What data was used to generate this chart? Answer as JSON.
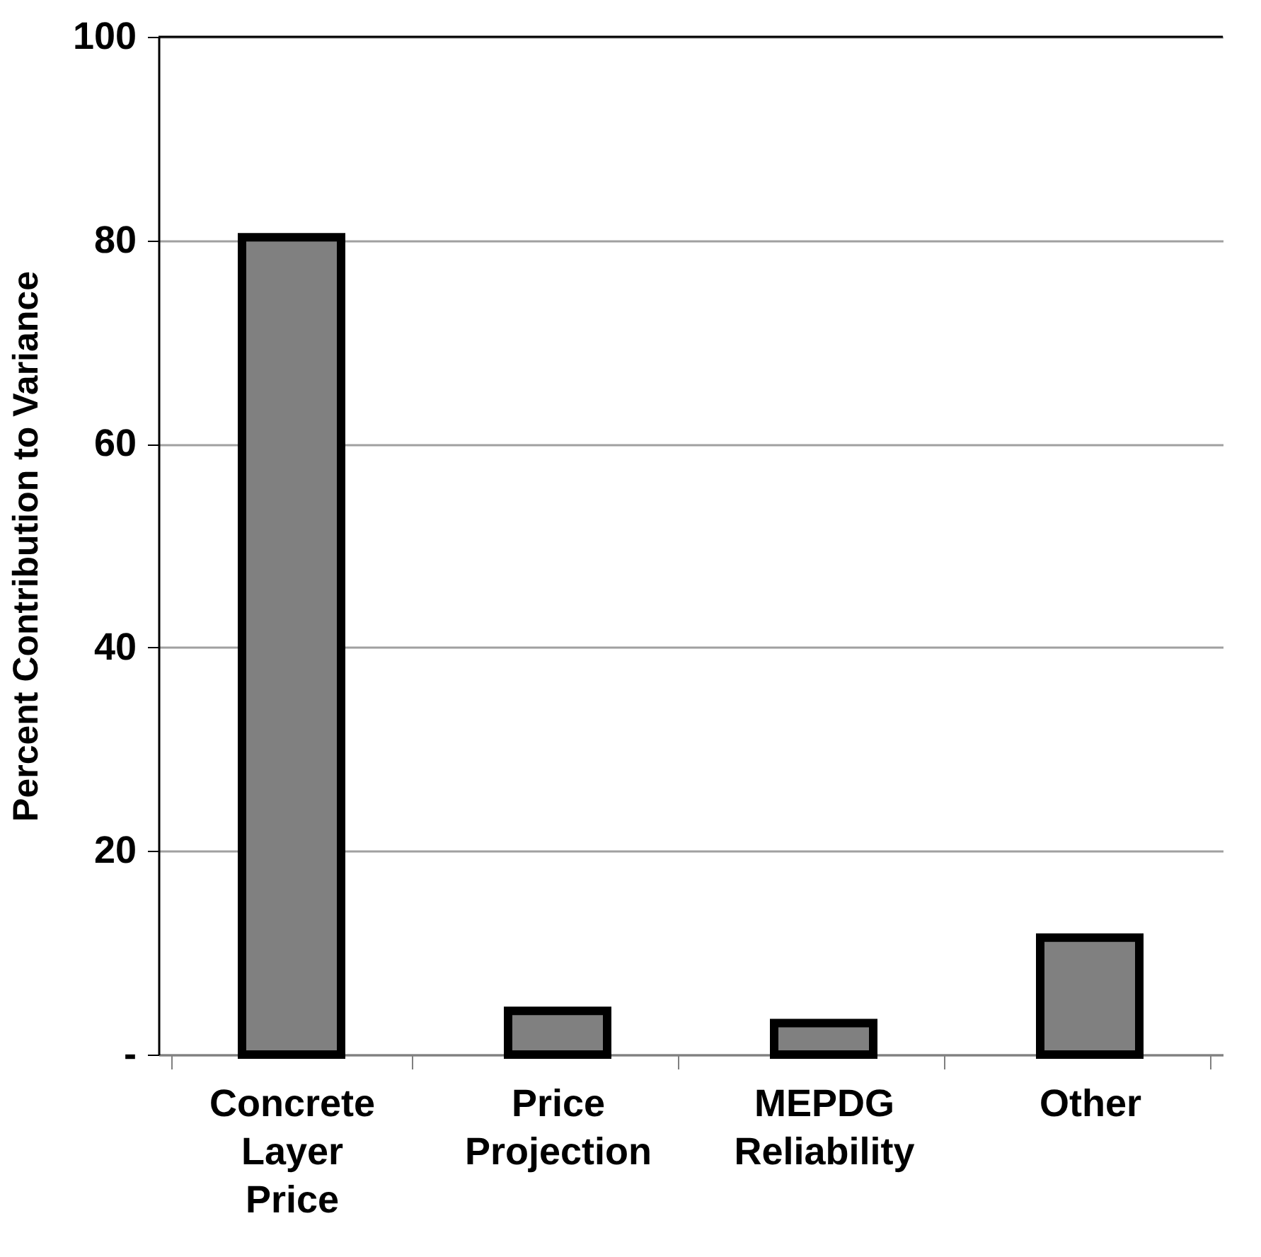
{
  "chart_data": {
    "type": "bar",
    "ylabel": "Percent Contribution to Variance",
    "categories": [
      "Concrete Layer Price",
      "Price Projection",
      "MEPDG Reliability",
      "Other"
    ],
    "values": [
      80.3,
      4.3,
      3.1,
      11.5
    ],
    "color": "#808080",
    "ylim": [
      0,
      100
    ],
    "yticks": [
      {
        "value": 0,
        "label": "-"
      },
      20,
      40,
      60,
      80,
      100
    ],
    "grid": "y"
  }
}
